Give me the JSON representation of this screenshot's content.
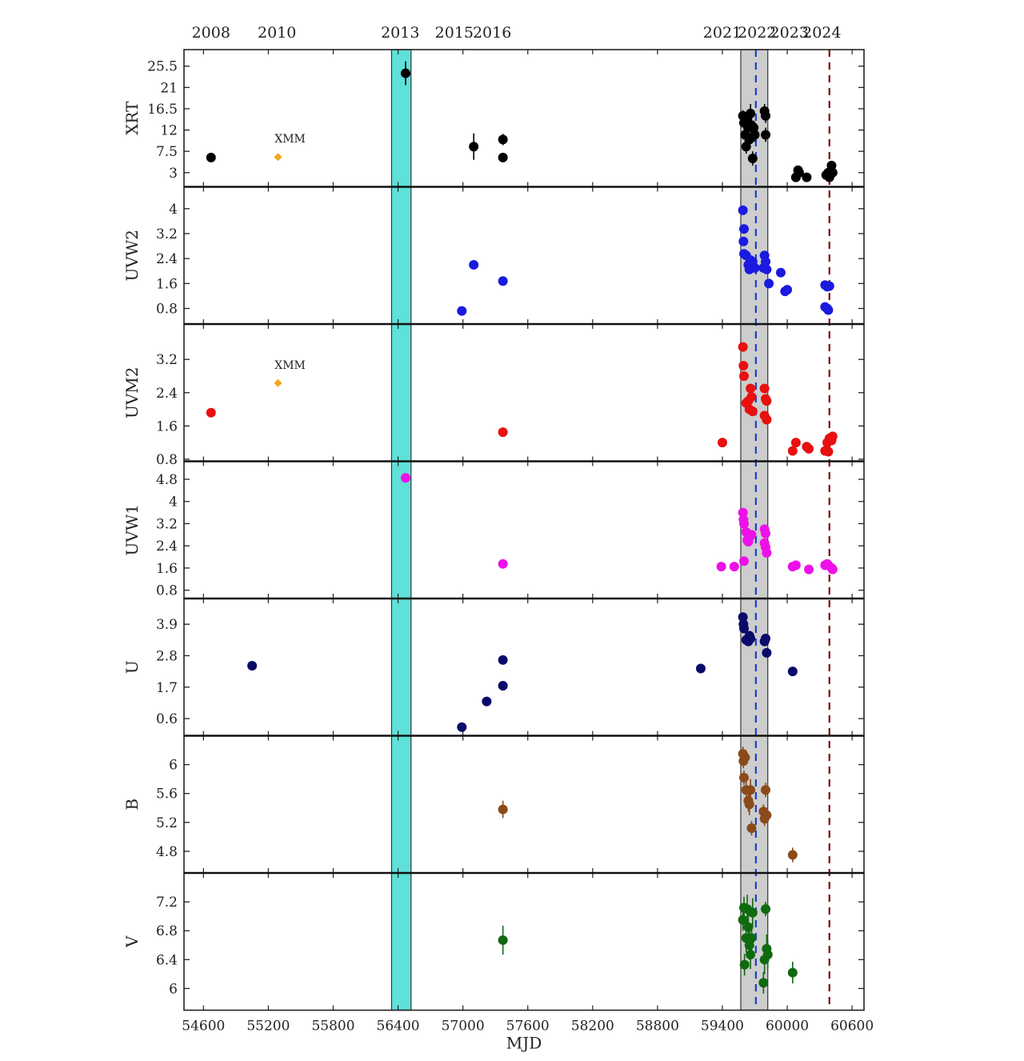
{
  "chart_data": {
    "type": "scatter",
    "xlabel": "MJD",
    "xlim": [
      54420,
      60710
    ],
    "xticks": [
      54600,
      55200,
      55800,
      56400,
      57000,
      57600,
      58200,
      58800,
      59400,
      60000,
      60600
    ],
    "years": [
      {
        "label": "2008",
        "mjd": 54670
      },
      {
        "label": "2010",
        "mjd": 55280
      },
      {
        "label": "2013",
        "mjd": 56420
      },
      {
        "label": "2015",
        "mjd": 56920
      },
      {
        "label": "2016",
        "mjd": 57270
      },
      {
        "label": "2021",
        "mjd": 59400
      },
      {
        "label": "2022",
        "mjd": 59720
      },
      {
        "label": "2023",
        "mjd": 60020
      },
      {
        "label": "2024",
        "mjd": 60320
      }
    ],
    "bands": [
      {
        "name": "cyan",
        "from": 56340,
        "to": 56520,
        "color": "#5fe0d8"
      },
      {
        "name": "gray",
        "from": 59570,
        "to": 59820,
        "color": "#cdcdcd"
      }
    ],
    "vlines": [
      {
        "mjd": 59710,
        "color": "#1a3fc4"
      },
      {
        "mjd": 60390,
        "color": "#7a1010"
      }
    ],
    "panels": [
      {
        "ylabel": "XRT",
        "color": "#000000",
        "ylim": [
          0,
          29
        ],
        "yticks": [
          "3",
          "7.5",
          "12",
          "16.5",
          "21",
          "25.5"
        ],
        "annotations": [
          {
            "text": "XMM",
            "x": 55290,
            "y": 6.3
          }
        ],
        "xmm": [
          {
            "x": 55290,
            "y": 6.3
          }
        ],
        "points": [
          [
            54670,
            6.2,
            0.6
          ],
          [
            56470,
            24,
            2.5
          ],
          [
            57100,
            8.5,
            2.8
          ],
          [
            57370,
            10,
            1.2
          ],
          [
            57370,
            6.2,
            0.8
          ],
          [
            59590,
            15,
            1.2
          ],
          [
            59600,
            13.5,
            1.5
          ],
          [
            59610,
            11,
            1.5
          ],
          [
            59620,
            8.5,
            1.5
          ],
          [
            59630,
            14.5,
            1.5
          ],
          [
            59640,
            12.5,
            1.5
          ],
          [
            59650,
            10,
            1.5
          ],
          [
            59660,
            15.5,
            2
          ],
          [
            59670,
            13,
            1.5
          ],
          [
            59680,
            6,
            1.5
          ],
          [
            59690,
            12.5,
            1.5
          ],
          [
            59700,
            11,
            1.5
          ],
          [
            59790,
            16,
            1.5
          ],
          [
            59800,
            15,
            1.5
          ],
          [
            59800,
            11,
            1.5
          ],
          [
            60080,
            2,
            0.5
          ],
          [
            60100,
            3.5,
            0.5
          ],
          [
            60110,
            3,
            0.5
          ],
          [
            60180,
            2,
            0.5
          ],
          [
            60360,
            2.5,
            0.8
          ],
          [
            60380,
            3,
            1
          ],
          [
            60390,
            2,
            1
          ],
          [
            60400,
            3,
            1
          ],
          [
            60410,
            4.5,
            1
          ],
          [
            60420,
            3,
            0.8
          ]
        ]
      },
      {
        "ylabel": "UVW2",
        "color": "#1a1ae0",
        "ylim": [
          0.3,
          4.7
        ],
        "yticks": [
          "0.8",
          "1.6",
          "2.4",
          "3.2",
          "4"
        ],
        "annotations": [],
        "xmm": [],
        "points": [
          [
            56990,
            0.72
          ],
          [
            57100,
            2.2
          ],
          [
            57370,
            1.68
          ],
          [
            59590,
            3.95
          ],
          [
            59600,
            3.35
          ],
          [
            59595,
            2.95
          ],
          [
            59600,
            2.55
          ],
          [
            59620,
            2.5
          ],
          [
            59640,
            2.2
          ],
          [
            59650,
            2.05
          ],
          [
            59660,
            2.35
          ],
          [
            59680,
            2.3
          ],
          [
            59700,
            2.1
          ],
          [
            59780,
            2.1
          ],
          [
            59790,
            2.5
          ],
          [
            59800,
            2.3
          ],
          [
            59810,
            2.05
          ],
          [
            59830,
            1.6
          ],
          [
            59940,
            1.95
          ],
          [
            59980,
            1.35
          ],
          [
            60000,
            1.4
          ],
          [
            60350,
            1.55
          ],
          [
            60370,
            1.5
          ],
          [
            60390,
            1.52
          ],
          [
            60350,
            0.85
          ],
          [
            60370,
            0.8
          ],
          [
            60380,
            0.75
          ]
        ]
      },
      {
        "ylabel": "UVM2",
        "color": "#e81010",
        "ylim": [
          0.75,
          4.05
        ],
        "yticks": [
          "0.8",
          "1.6",
          "2.4",
          "3.2"
        ],
        "annotations": [
          {
            "text": "XMM",
            "x": 55290,
            "y": 2.63
          }
        ],
        "xmm": [
          {
            "x": 55290,
            "y": 2.63
          }
        ],
        "points": [
          [
            54670,
            1.92
          ],
          [
            57370,
            1.45
          ],
          [
            59400,
            1.2
          ],
          [
            59590,
            3.5
          ],
          [
            59595,
            3.05
          ],
          [
            59600,
            2.8
          ],
          [
            59620,
            2.15
          ],
          [
            59640,
            2.2
          ],
          [
            59650,
            2.0
          ],
          [
            59660,
            2.5
          ],
          [
            59670,
            2.3
          ],
          [
            59680,
            1.95
          ],
          [
            59790,
            2.5
          ],
          [
            59800,
            2.25
          ],
          [
            59810,
            2.2
          ],
          [
            59790,
            1.85
          ],
          [
            59810,
            1.75
          ],
          [
            60050,
            1.0
          ],
          [
            60080,
            1.2
          ],
          [
            60180,
            1.1
          ],
          [
            60200,
            1.05
          ],
          [
            60350,
            1.0
          ],
          [
            60370,
            1.2
          ],
          [
            60390,
            1.3
          ],
          [
            60410,
            1.25
          ],
          [
            60420,
            1.35
          ],
          [
            60380,
            0.98
          ]
        ]
      },
      {
        "ylabel": "UVW1",
        "color": "#ee10e8",
        "ylim": [
          0.5,
          5.45
        ],
        "yticks": [
          "0.8",
          "1.6",
          "2.4",
          "3.2",
          "4",
          "4.8"
        ],
        "annotations": [],
        "xmm": [],
        "points": [
          [
            56470,
            4.85
          ],
          [
            57370,
            1.75
          ],
          [
            59390,
            1.65
          ],
          [
            59510,
            1.65
          ],
          [
            59590,
            3.6
          ],
          [
            59595,
            3.35
          ],
          [
            59600,
            3.2
          ],
          [
            59620,
            2.9
          ],
          [
            59630,
            2.6
          ],
          [
            59640,
            2.55
          ],
          [
            59650,
            2.7
          ],
          [
            59670,
            2.8
          ],
          [
            59600,
            1.85
          ],
          [
            59790,
            3.0
          ],
          [
            59800,
            2.85
          ],
          [
            59790,
            2.5
          ],
          [
            59800,
            2.35
          ],
          [
            59810,
            2.15
          ],
          [
            60050,
            1.65
          ],
          [
            60080,
            1.7
          ],
          [
            60200,
            1.55
          ],
          [
            60350,
            1.7
          ],
          [
            60370,
            1.75
          ],
          [
            60380,
            1.7
          ],
          [
            60410,
            1.6
          ],
          [
            60420,
            1.55
          ]
        ]
      },
      {
        "ylabel": "U",
        "color": "#0a0a6a",
        "ylim": [
          0.0,
          4.8
        ],
        "yticks": [
          "0.6",
          "1.7",
          "2.8",
          "3.9"
        ],
        "annotations": [],
        "xmm": [],
        "points": [
          [
            55050,
            2.45
          ],
          [
            56990,
            0.3
          ],
          [
            57220,
            1.2
          ],
          [
            57370,
            2.65
          ],
          [
            57370,
            1.75
          ],
          [
            59200,
            2.35
          ],
          [
            59590,
            4.15
          ],
          [
            59595,
            3.9
          ],
          [
            59600,
            3.75
          ],
          [
            59620,
            3.35
          ],
          [
            59640,
            3.3
          ],
          [
            59650,
            3.5
          ],
          [
            59660,
            3.4
          ],
          [
            59790,
            3.3
          ],
          [
            59800,
            3.4
          ],
          [
            59810,
            2.9
          ],
          [
            60050,
            2.25
          ]
        ]
      },
      {
        "ylabel": "B",
        "color": "#8b4a1a",
        "ylim": [
          4.5,
          6.4
        ],
        "yticks": [
          "4.8",
          "5.2",
          "5.6",
          "6"
        ],
        "annotations": [],
        "xmm": [],
        "points": [
          [
            57370,
            5.38,
            0.12
          ],
          [
            59590,
            6.15,
            0.1
          ],
          [
            59595,
            6.05,
            0.1
          ],
          [
            59600,
            5.82,
            0.1
          ],
          [
            59610,
            6.1,
            0.1
          ],
          [
            59620,
            5.65,
            0.12
          ],
          [
            59640,
            5.5,
            0.15
          ],
          [
            59650,
            5.45,
            0.15
          ],
          [
            59660,
            5.65,
            0.15
          ],
          [
            59670,
            5.12,
            0.1
          ],
          [
            59780,
            5.35,
            0.1
          ],
          [
            59790,
            5.25,
            0.1
          ],
          [
            59800,
            5.65,
            0.1
          ],
          [
            59810,
            5.3,
            0.1
          ],
          [
            60050,
            4.75,
            0.1
          ]
        ]
      },
      {
        "ylabel": "V",
        "color": "#0f6a0f",
        "ylim": [
          5.7,
          7.6
        ],
        "yticks": [
          "6",
          "6.4",
          "6.8",
          "7.2"
        ],
        "annotations": [],
        "xmm": [],
        "points": [
          [
            57370,
            6.67,
            0.2
          ],
          [
            59590,
            6.95,
            0.15
          ],
          [
            59600,
            7.12,
            0.15
          ],
          [
            59605,
            6.33,
            0.15
          ],
          [
            59620,
            6.7,
            0.2
          ],
          [
            59630,
            7.1,
            0.2
          ],
          [
            59640,
            6.85,
            0.2
          ],
          [
            59650,
            6.6,
            0.2
          ],
          [
            59660,
            6.47,
            0.2
          ],
          [
            59670,
            6.7,
            0.2
          ],
          [
            59680,
            7.05,
            0.2
          ],
          [
            59780,
            6.08,
            0.15
          ],
          [
            59790,
            6.4,
            0.2
          ],
          [
            59800,
            7.1,
            0.1
          ],
          [
            59810,
            6.55,
            0.2
          ],
          [
            59820,
            6.47,
            0.2
          ],
          [
            60050,
            6.22,
            0.15
          ]
        ]
      }
    ]
  }
}
